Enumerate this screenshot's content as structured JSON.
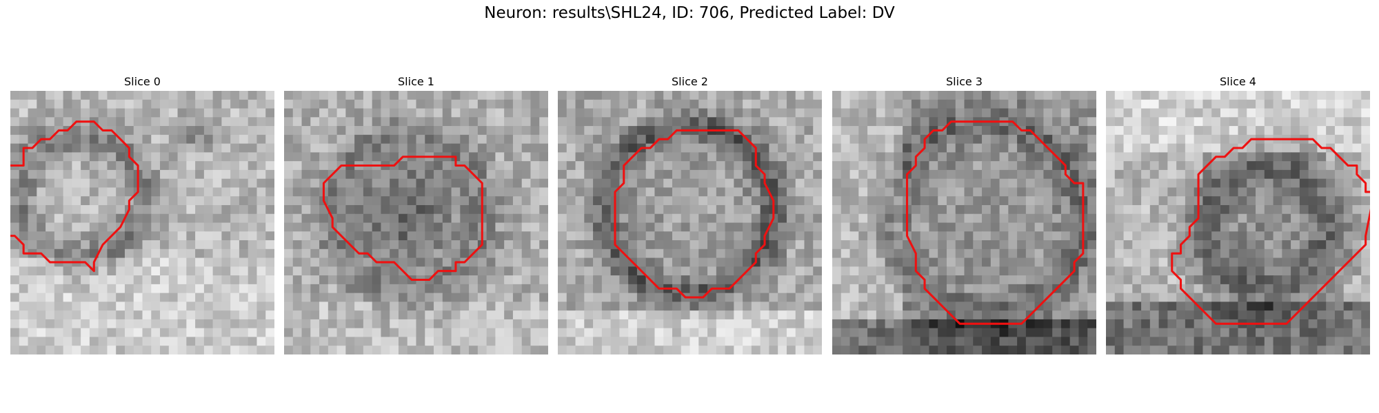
{
  "figure": {
    "title": "Neuron: results\\SHL24, ID: 706, Predicted Label: DV"
  },
  "colors": {
    "contour": "#ee1111",
    "background": "#ffffff"
  },
  "image_grid": {
    "rows": 30,
    "cols": 30
  },
  "panels": [
    {
      "title": "Slice 0",
      "seed": 11,
      "pattern": "offcenter_ring",
      "contour": [
        [
          -1,
          8
        ],
        [
          1,
          8
        ],
        [
          1,
          6
        ],
        [
          2,
          6
        ],
        [
          3,
          5
        ],
        [
          4,
          5
        ],
        [
          5,
          4
        ],
        [
          5,
          4
        ],
        [
          6,
          4
        ],
        [
          7,
          3
        ],
        [
          8,
          3
        ],
        [
          9,
          3
        ],
        [
          10,
          4
        ],
        [
          11,
          4
        ],
        [
          12,
          5
        ],
        [
          13,
          6
        ],
        [
          13,
          7
        ],
        [
          14,
          8
        ],
        [
          14,
          9
        ],
        [
          14,
          10
        ],
        [
          14,
          11
        ],
        [
          13,
          12
        ],
        [
          13,
          13
        ],
        [
          12,
          15
        ],
        [
          11,
          16
        ],
        [
          10,
          17
        ],
        [
          9,
          19
        ],
        [
          9,
          20
        ],
        [
          8,
          19
        ],
        [
          6,
          19
        ],
        [
          5,
          19
        ],
        [
          4,
          19
        ],
        [
          3,
          18
        ],
        [
          2,
          18
        ],
        [
          1,
          18
        ],
        [
          1,
          17
        ],
        [
          0,
          16
        ],
        [
          -1,
          16
        ],
        [
          -1,
          14
        ],
        [
          -1,
          13
        ]
      ]
    },
    {
      "title": "Slice 1",
      "seed": 23,
      "pattern": "center_dark",
      "contour": [
        [
          5,
          9
        ],
        [
          6,
          8
        ],
        [
          8,
          8
        ],
        [
          10,
          8
        ],
        [
          12,
          8
        ],
        [
          13,
          7
        ],
        [
          14,
          7
        ],
        [
          16,
          7
        ],
        [
          18,
          7
        ],
        [
          19,
          7
        ],
        [
          19,
          8
        ],
        [
          20,
          8
        ],
        [
          21,
          9
        ],
        [
          22,
          10
        ],
        [
          22,
          11
        ],
        [
          22,
          13
        ],
        [
          22,
          15
        ],
        [
          22,
          17
        ],
        [
          21,
          18
        ],
        [
          20,
          19
        ],
        [
          19,
          19
        ],
        [
          19,
          20
        ],
        [
          18,
          20
        ],
        [
          17,
          20
        ],
        [
          16,
          21
        ],
        [
          15,
          21
        ],
        [
          14,
          21
        ],
        [
          13,
          20
        ],
        [
          12,
          19
        ],
        [
          11,
          19
        ],
        [
          10,
          19
        ],
        [
          9,
          18
        ],
        [
          8,
          18
        ],
        [
          7,
          17
        ],
        [
          6,
          16
        ],
        [
          5,
          15
        ],
        [
          5,
          14
        ],
        [
          4,
          12
        ],
        [
          4,
          11
        ],
        [
          4,
          10
        ]
      ]
    },
    {
      "title": "Slice 2",
      "seed": 37,
      "pattern": "ring",
      "contour": [
        [
          7,
          8
        ],
        [
          8,
          7
        ],
        [
          9,
          6
        ],
        [
          10,
          6
        ],
        [
          11,
          5
        ],
        [
          12,
          5
        ],
        [
          13,
          4
        ],
        [
          14,
          4
        ],
        [
          15,
          4
        ],
        [
          16,
          4
        ],
        [
          17,
          4
        ],
        [
          18,
          4
        ],
        [
          19,
          4
        ],
        [
          20,
          4
        ],
        [
          21,
          5
        ],
        [
          22,
          6
        ],
        [
          22,
          8
        ],
        [
          23,
          9
        ],
        [
          23,
          10
        ],
        [
          24,
          12
        ],
        [
          24,
          14
        ],
        [
          23,
          16
        ],
        [
          23,
          17
        ],
        [
          22,
          18
        ],
        [
          22,
          19
        ],
        [
          21,
          20
        ],
        [
          20,
          21
        ],
        [
          19,
          22
        ],
        [
          18,
          22
        ],
        [
          17,
          22
        ],
        [
          16,
          23
        ],
        [
          15,
          23
        ],
        [
          14,
          23
        ],
        [
          13,
          22
        ],
        [
          12,
          22
        ],
        [
          11,
          22
        ],
        [
          10,
          21
        ],
        [
          9,
          20
        ],
        [
          8,
          19
        ],
        [
          7,
          18
        ],
        [
          6,
          17
        ],
        [
          6,
          15
        ],
        [
          6,
          13
        ],
        [
          6,
          11
        ],
        [
          7,
          10
        ]
      ]
    },
    {
      "title": "Slice 3",
      "seed": 51,
      "pattern": "large_ring",
      "contour": [
        [
          10,
          5
        ],
        [
          11,
          4
        ],
        [
          12,
          4
        ],
        [
          13,
          3
        ],
        [
          14,
          3
        ],
        [
          15,
          3
        ],
        [
          16,
          3
        ],
        [
          17,
          3
        ],
        [
          18,
          3
        ],
        [
          19,
          3
        ],
        [
          20,
          3
        ],
        [
          21,
          4
        ],
        [
          22,
          4
        ],
        [
          23,
          5
        ],
        [
          24,
          6
        ],
        [
          25,
          7
        ],
        [
          26,
          8
        ],
        [
          26,
          9
        ],
        [
          27,
          10
        ],
        [
          28,
          10
        ],
        [
          28,
          17
        ],
        [
          28,
          18
        ],
        [
          27,
          19
        ],
        [
          27,
          20
        ],
        [
          26,
          21
        ],
        [
          25,
          22
        ],
        [
          24,
          23
        ],
        [
          23,
          24
        ],
        [
          22,
          25
        ],
        [
          21,
          26
        ],
        [
          20,
          26
        ],
        [
          19,
          26
        ],
        [
          18,
          26
        ],
        [
          17,
          26
        ],
        [
          16,
          26
        ],
        [
          15,
          26
        ],
        [
          14,
          26
        ],
        [
          13,
          25
        ],
        [
          12,
          24
        ],
        [
          11,
          23
        ],
        [
          10,
          22
        ],
        [
          10,
          21
        ],
        [
          9,
          20
        ],
        [
          9,
          18
        ],
        [
          8,
          16
        ],
        [
          8,
          14
        ],
        [
          8,
          12
        ],
        [
          8,
          10
        ],
        [
          8,
          9
        ],
        [
          9,
          8
        ],
        [
          9,
          7
        ],
        [
          10,
          6
        ]
      ]
    },
    {
      "title": "Slice 4",
      "seed": 73,
      "pattern": "bottom_heavy",
      "contour": [
        [
          11,
          8
        ],
        [
          12,
          7
        ],
        [
          13,
          7
        ],
        [
          14,
          6
        ],
        [
          15,
          6
        ],
        [
          16,
          5
        ],
        [
          17,
          5
        ],
        [
          18,
          5
        ],
        [
          19,
          5
        ],
        [
          20,
          5
        ],
        [
          21,
          5
        ],
        [
          22,
          5
        ],
        [
          23,
          5
        ],
        [
          24,
          6
        ],
        [
          25,
          6
        ],
        [
          26,
          7
        ],
        [
          27,
          8
        ],
        [
          28,
          8
        ],
        [
          28,
          9
        ],
        [
          29,
          10
        ],
        [
          29,
          11
        ],
        [
          30,
          11
        ],
        [
          29,
          16
        ],
        [
          29,
          17
        ],
        [
          28,
          18
        ],
        [
          27,
          19
        ],
        [
          26,
          20
        ],
        [
          25,
          21
        ],
        [
          24,
          22
        ],
        [
          23,
          23
        ],
        [
          22,
          24
        ],
        [
          21,
          25
        ],
        [
          20,
          26
        ],
        [
          19,
          26
        ],
        [
          18,
          26
        ],
        [
          17,
          26
        ],
        [
          16,
          26
        ],
        [
          15,
          26
        ],
        [
          14,
          26
        ],
        [
          13,
          26
        ],
        [
          12,
          26
        ],
        [
          11,
          25
        ],
        [
          10,
          24
        ],
        [
          9,
          23
        ],
        [
          8,
          22
        ],
        [
          8,
          21
        ],
        [
          7,
          20
        ],
        [
          7,
          19
        ],
        [
          7,
          18
        ],
        [
          8,
          18
        ],
        [
          8,
          17
        ],
        [
          9,
          16
        ],
        [
          9,
          15
        ],
        [
          10,
          14
        ],
        [
          10,
          13
        ],
        [
          10,
          12
        ],
        [
          10,
          11
        ],
        [
          10,
          10
        ],
        [
          10,
          9
        ]
      ]
    }
  ]
}
